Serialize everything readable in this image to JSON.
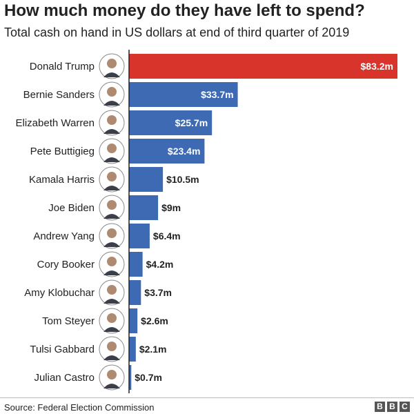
{
  "title": "How much money do they have left to spend?",
  "subtitle": "Total cash on hand in US dollars at end of third quarter of 2019",
  "source": "Source: Federal Election Commission",
  "logo_letters": [
    "B",
    "B",
    "C"
  ],
  "colors": {
    "highlight": "#d9342b",
    "bar": "#3d6ab2",
    "axis": "#222222"
  },
  "chart_data": {
    "type": "bar",
    "orientation": "horizontal",
    "title": "How much money do they have left to spend?",
    "subtitle": "Total cash on hand in US dollars at end of third quarter of 2019",
    "xlabel": "",
    "ylabel": "",
    "unit": "US dollars (millions)",
    "xlim": [
      0,
      83.2
    ],
    "grid": false,
    "highlight_category": "Donald Trump",
    "categories": [
      "Donald Trump",
      "Bernie Sanders",
      "Elizabeth Warren",
      "Pete Buttigieg",
      "Kamala Harris",
      "Joe Biden",
      "Andrew Yang",
      "Cory Booker",
      "Amy Klobuchar",
      "Tom Steyer",
      "Tulsi Gabbard",
      "Julian Castro"
    ],
    "values": [
      83.2,
      33.7,
      25.7,
      23.4,
      10.5,
      9,
      6.4,
      4.2,
      3.7,
      2.6,
      2.1,
      0.7
    ],
    "value_labels": [
      "$83.2m",
      "$33.7m",
      "$25.7m",
      "$23.4m",
      "$10.5m",
      "$9m",
      "$6.4m",
      "$4.2m",
      "$3.7m",
      "$2.6m",
      "$2.1m",
      "$0.7m"
    ]
  }
}
